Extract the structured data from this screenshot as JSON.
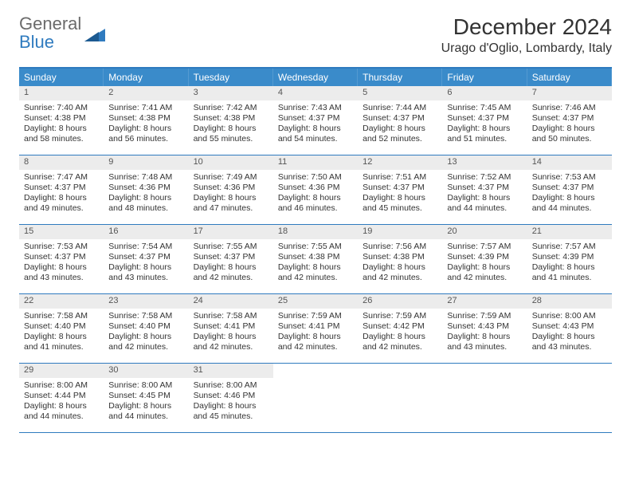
{
  "brand": {
    "line1": "General",
    "line2": "Blue"
  },
  "colors": {
    "accent": "#3a8bca",
    "accent_dark": "#2f7bbf",
    "daynum_bg": "#ececec",
    "text": "#333333",
    "logo_gray": "#6b6b6b"
  },
  "title": "December 2024",
  "location": "Urago d'Oglio, Lombardy, Italy",
  "day_headers": [
    "Sunday",
    "Monday",
    "Tuesday",
    "Wednesday",
    "Thursday",
    "Friday",
    "Saturday"
  ],
  "weeks": [
    [
      {
        "n": "1",
        "sr": "Sunrise: 7:40 AM",
        "ss": "Sunset: 4:38 PM",
        "d1": "Daylight: 8 hours",
        "d2": "and 58 minutes."
      },
      {
        "n": "2",
        "sr": "Sunrise: 7:41 AM",
        "ss": "Sunset: 4:38 PM",
        "d1": "Daylight: 8 hours",
        "d2": "and 56 minutes."
      },
      {
        "n": "3",
        "sr": "Sunrise: 7:42 AM",
        "ss": "Sunset: 4:38 PM",
        "d1": "Daylight: 8 hours",
        "d2": "and 55 minutes."
      },
      {
        "n": "4",
        "sr": "Sunrise: 7:43 AM",
        "ss": "Sunset: 4:37 PM",
        "d1": "Daylight: 8 hours",
        "d2": "and 54 minutes."
      },
      {
        "n": "5",
        "sr": "Sunrise: 7:44 AM",
        "ss": "Sunset: 4:37 PM",
        "d1": "Daylight: 8 hours",
        "d2": "and 52 minutes."
      },
      {
        "n": "6",
        "sr": "Sunrise: 7:45 AM",
        "ss": "Sunset: 4:37 PM",
        "d1": "Daylight: 8 hours",
        "d2": "and 51 minutes."
      },
      {
        "n": "7",
        "sr": "Sunrise: 7:46 AM",
        "ss": "Sunset: 4:37 PM",
        "d1": "Daylight: 8 hours",
        "d2": "and 50 minutes."
      }
    ],
    [
      {
        "n": "8",
        "sr": "Sunrise: 7:47 AM",
        "ss": "Sunset: 4:37 PM",
        "d1": "Daylight: 8 hours",
        "d2": "and 49 minutes."
      },
      {
        "n": "9",
        "sr": "Sunrise: 7:48 AM",
        "ss": "Sunset: 4:36 PM",
        "d1": "Daylight: 8 hours",
        "d2": "and 48 minutes."
      },
      {
        "n": "10",
        "sr": "Sunrise: 7:49 AM",
        "ss": "Sunset: 4:36 PM",
        "d1": "Daylight: 8 hours",
        "d2": "and 47 minutes."
      },
      {
        "n": "11",
        "sr": "Sunrise: 7:50 AM",
        "ss": "Sunset: 4:36 PM",
        "d1": "Daylight: 8 hours",
        "d2": "and 46 minutes."
      },
      {
        "n": "12",
        "sr": "Sunrise: 7:51 AM",
        "ss": "Sunset: 4:37 PM",
        "d1": "Daylight: 8 hours",
        "d2": "and 45 minutes."
      },
      {
        "n": "13",
        "sr": "Sunrise: 7:52 AM",
        "ss": "Sunset: 4:37 PM",
        "d1": "Daylight: 8 hours",
        "d2": "and 44 minutes."
      },
      {
        "n": "14",
        "sr": "Sunrise: 7:53 AM",
        "ss": "Sunset: 4:37 PM",
        "d1": "Daylight: 8 hours",
        "d2": "and 44 minutes."
      }
    ],
    [
      {
        "n": "15",
        "sr": "Sunrise: 7:53 AM",
        "ss": "Sunset: 4:37 PM",
        "d1": "Daylight: 8 hours",
        "d2": "and 43 minutes."
      },
      {
        "n": "16",
        "sr": "Sunrise: 7:54 AM",
        "ss": "Sunset: 4:37 PM",
        "d1": "Daylight: 8 hours",
        "d2": "and 43 minutes."
      },
      {
        "n": "17",
        "sr": "Sunrise: 7:55 AM",
        "ss": "Sunset: 4:37 PM",
        "d1": "Daylight: 8 hours",
        "d2": "and 42 minutes."
      },
      {
        "n": "18",
        "sr": "Sunrise: 7:55 AM",
        "ss": "Sunset: 4:38 PM",
        "d1": "Daylight: 8 hours",
        "d2": "and 42 minutes."
      },
      {
        "n": "19",
        "sr": "Sunrise: 7:56 AM",
        "ss": "Sunset: 4:38 PM",
        "d1": "Daylight: 8 hours",
        "d2": "and 42 minutes."
      },
      {
        "n": "20",
        "sr": "Sunrise: 7:57 AM",
        "ss": "Sunset: 4:39 PM",
        "d1": "Daylight: 8 hours",
        "d2": "and 42 minutes."
      },
      {
        "n": "21",
        "sr": "Sunrise: 7:57 AM",
        "ss": "Sunset: 4:39 PM",
        "d1": "Daylight: 8 hours",
        "d2": "and 41 minutes."
      }
    ],
    [
      {
        "n": "22",
        "sr": "Sunrise: 7:58 AM",
        "ss": "Sunset: 4:40 PM",
        "d1": "Daylight: 8 hours",
        "d2": "and 41 minutes."
      },
      {
        "n": "23",
        "sr": "Sunrise: 7:58 AM",
        "ss": "Sunset: 4:40 PM",
        "d1": "Daylight: 8 hours",
        "d2": "and 42 minutes."
      },
      {
        "n": "24",
        "sr": "Sunrise: 7:58 AM",
        "ss": "Sunset: 4:41 PM",
        "d1": "Daylight: 8 hours",
        "d2": "and 42 minutes."
      },
      {
        "n": "25",
        "sr": "Sunrise: 7:59 AM",
        "ss": "Sunset: 4:41 PM",
        "d1": "Daylight: 8 hours",
        "d2": "and 42 minutes."
      },
      {
        "n": "26",
        "sr": "Sunrise: 7:59 AM",
        "ss": "Sunset: 4:42 PM",
        "d1": "Daylight: 8 hours",
        "d2": "and 42 minutes."
      },
      {
        "n": "27",
        "sr": "Sunrise: 7:59 AM",
        "ss": "Sunset: 4:43 PM",
        "d1": "Daylight: 8 hours",
        "d2": "and 43 minutes."
      },
      {
        "n": "28",
        "sr": "Sunrise: 8:00 AM",
        "ss": "Sunset: 4:43 PM",
        "d1": "Daylight: 8 hours",
        "d2": "and 43 minutes."
      }
    ],
    [
      {
        "n": "29",
        "sr": "Sunrise: 8:00 AM",
        "ss": "Sunset: 4:44 PM",
        "d1": "Daylight: 8 hours",
        "d2": "and 44 minutes."
      },
      {
        "n": "30",
        "sr": "Sunrise: 8:00 AM",
        "ss": "Sunset: 4:45 PM",
        "d1": "Daylight: 8 hours",
        "d2": "and 44 minutes."
      },
      {
        "n": "31",
        "sr": "Sunrise: 8:00 AM",
        "ss": "Sunset: 4:46 PM",
        "d1": "Daylight: 8 hours",
        "d2": "and 45 minutes."
      },
      null,
      null,
      null,
      null
    ]
  ]
}
